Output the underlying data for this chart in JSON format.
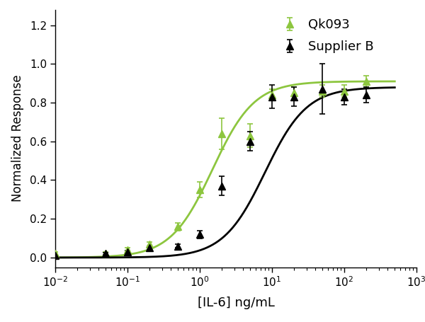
{
  "title": "",
  "xlabel": "[IL-6] ng/mL",
  "ylabel": "Normalized Response",
  "xlim_log": [
    -2,
    3
  ],
  "ylim": [
    -0.05,
    1.28
  ],
  "yticks": [
    0.0,
    0.2,
    0.4,
    0.6,
    0.8,
    1.0,
    1.2
  ],
  "legend_labels": [
    "Qk093",
    "Supplier B"
  ],
  "qk093_color": "#8dc63f",
  "supplierb_color": "#000000",
  "qk093_x": [
    0.01,
    0.05,
    0.1,
    0.2,
    0.5,
    1.0,
    2.0,
    5.0,
    10.0,
    20.0,
    50.0,
    100.0,
    200.0
  ],
  "qk093_y": [
    0.02,
    0.02,
    0.04,
    0.07,
    0.16,
    0.35,
    0.64,
    0.63,
    0.84,
    0.85,
    0.86,
    0.86,
    0.91
  ],
  "qk093_yerr": [
    0.01,
    0.01,
    0.01,
    0.01,
    0.02,
    0.04,
    0.08,
    0.06,
    0.03,
    0.03,
    0.03,
    0.03,
    0.03
  ],
  "supplierb_x": [
    0.01,
    0.05,
    0.1,
    0.2,
    0.5,
    1.0,
    2.0,
    5.0,
    10.0,
    20.0,
    50.0,
    100.0,
    200.0
  ],
  "supplierb_y": [
    0.01,
    0.02,
    0.03,
    0.05,
    0.06,
    0.12,
    0.37,
    0.6,
    0.83,
    0.83,
    0.87,
    0.83,
    0.84
  ],
  "supplierb_yerr": [
    0.005,
    0.005,
    0.005,
    0.01,
    0.01,
    0.02,
    0.05,
    0.05,
    0.06,
    0.05,
    0.13,
    0.04,
    0.04
  ],
  "marker_size": 7,
  "line_width": 2.0,
  "xlabel_fontsize": 13,
  "ylabel_fontsize": 12,
  "tick_fontsize": 11,
  "legend_fontsize": 13,
  "background_color": "#ffffff"
}
